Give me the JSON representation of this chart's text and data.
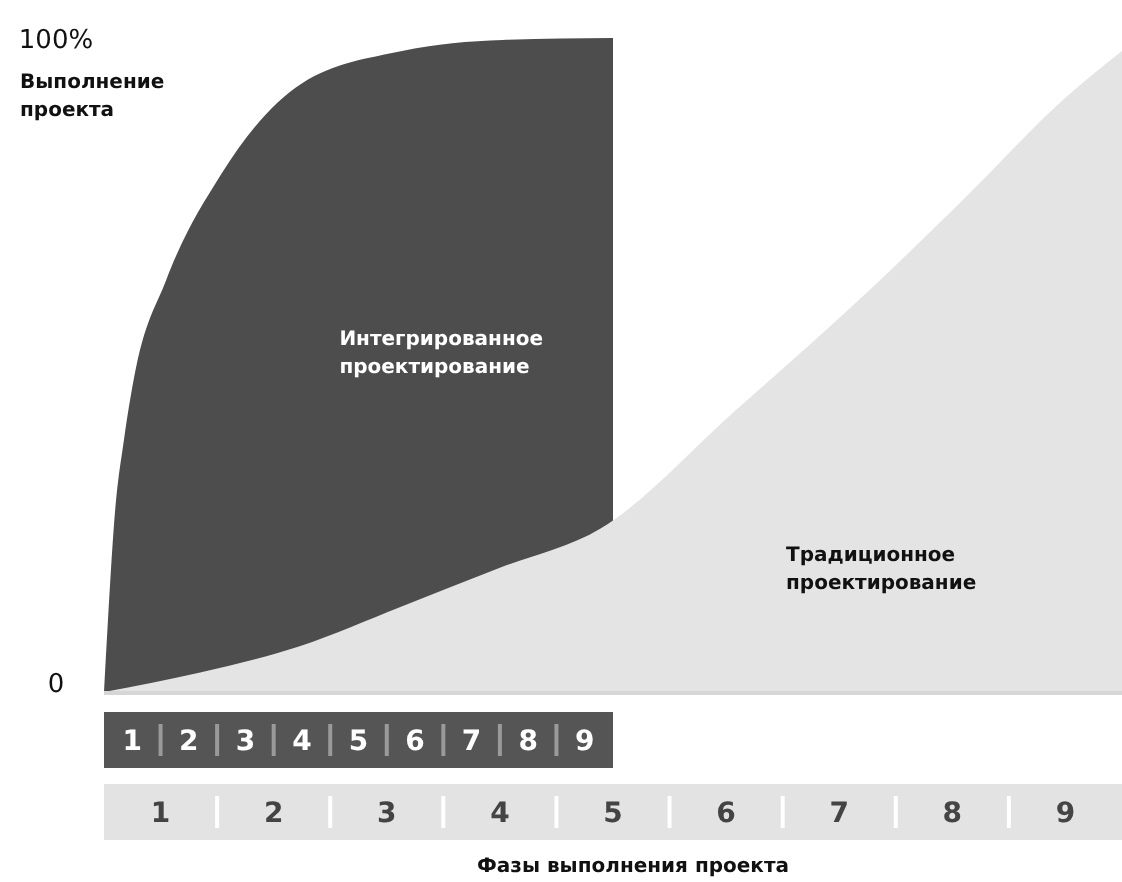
{
  "chart_data": {
    "type": "area",
    "xlabel": "Фазы выполнения проекта",
    "ylabel": "Выполнение проекта",
    "xlim": [
      0,
      9
    ],
    "xticks": [
      {
        "value": 0.5,
        "label": "1"
      },
      {
        "value": 1.5,
        "label": "2"
      },
      {
        "value": 2.5,
        "label": "3"
      },
      {
        "value": 3.5,
        "label": "4"
      },
      {
        "value": 4.5,
        "label": "5"
      },
      {
        "value": 5.5,
        "label": "6"
      },
      {
        "value": 6.5,
        "label": "7"
      },
      {
        "value": 7.5,
        "label": "8"
      },
      {
        "value": 8.5,
        "label": "9"
      }
    ],
    "x2lim": [
      0,
      18
    ],
    "x2ticks": [
      {
        "value": 0.5,
        "label": "1"
      },
      {
        "value": 1.5,
        "label": "2"
      },
      {
        "value": 2.5,
        "label": "3"
      },
      {
        "value": 3.5,
        "label": "4"
      },
      {
        "value": 4.5,
        "label": "5"
      },
      {
        "value": 5.5,
        "label": "6"
      },
      {
        "value": 6.5,
        "label": "7"
      },
      {
        "value": 7.5,
        "label": "8"
      },
      {
        "value": 8.5,
        "label": "9"
      }
    ],
    "ylim": [
      0,
      100
    ],
    "yticks": [
      {
        "value": 0,
        "label": "0"
      },
      {
        "value": 100,
        "label": "100%"
      }
    ],
    "grid": false,
    "series": [
      {
        "name": "Интегрированное проектирование",
        "color": "#4d4d4d",
        "axis": "x2",
        "x": [
          0,
          0.07,
          0.18,
          0.36,
          0.53,
          1.1,
          2.06,
          3.49,
          5.27,
          7.05,
          9
        ],
        "values": [
          0,
          11,
          26,
          39,
          48,
          63,
          79,
          93,
          98,
          99.7,
          100
        ]
      },
      {
        "name": "Традиционное проектирование",
        "color": "#e4e4e4",
        "x": [
          0,
          0.85,
          1.73,
          2.62,
          3.5,
          4.39,
          5.58,
          6.74,
          7.58,
          8.51,
          9
        ],
        "values": [
          0,
          3,
          7,
          13,
          19,
          25,
          43,
          61,
          75,
          91,
          98
        ]
      }
    ]
  }
}
